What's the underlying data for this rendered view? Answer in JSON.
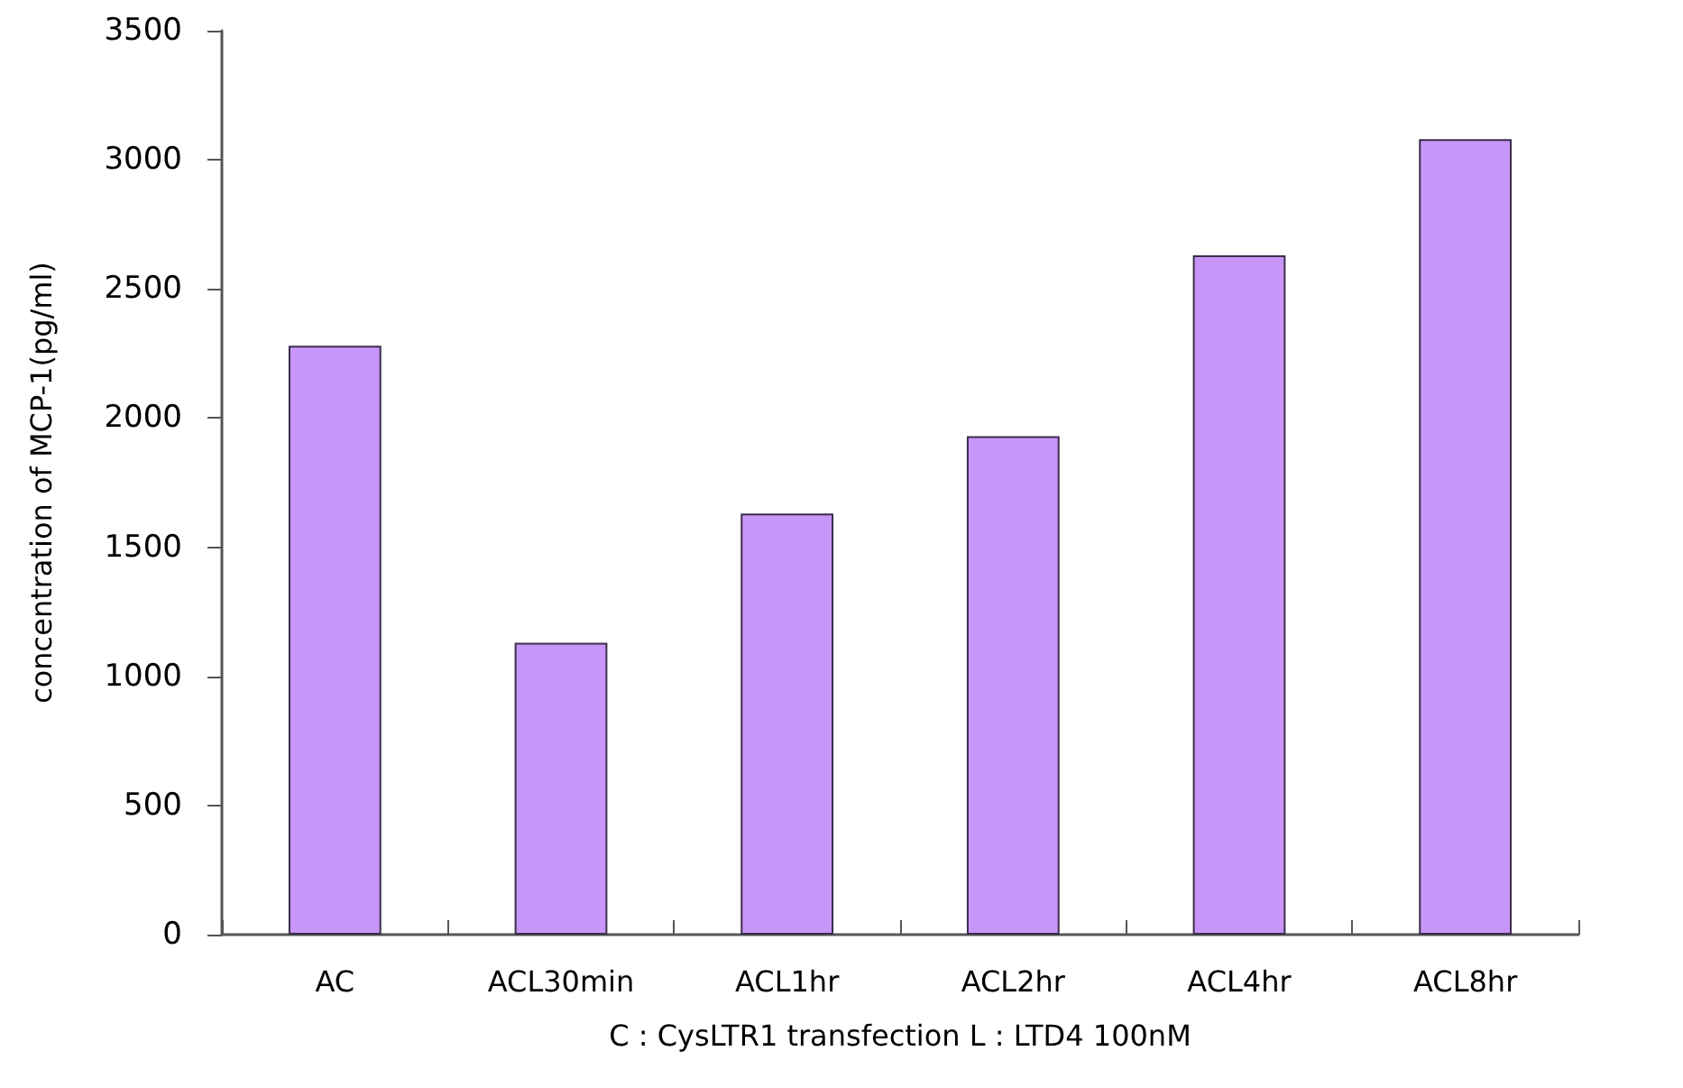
{
  "chart_data": {
    "type": "bar",
    "xlabel": "C : CysLTR1 transfection L : LTD4 100nM",
    "ylabel": "concentration of MCP-1(pg/ml)",
    "categories": [
      "AC",
      "ACL30min",
      "ACL1hr",
      "ACL2hr",
      "ACL4hr",
      "ACL8hr"
    ],
    "values": [
      2280,
      1130,
      1630,
      1930,
      2630,
      3080
    ],
    "color": "#c896f8",
    "ylim": [
      0,
      3500
    ],
    "yticks": [
      0,
      500,
      1000,
      1500,
      2000,
      2500,
      3000,
      3500
    ],
    "grid": false
  }
}
